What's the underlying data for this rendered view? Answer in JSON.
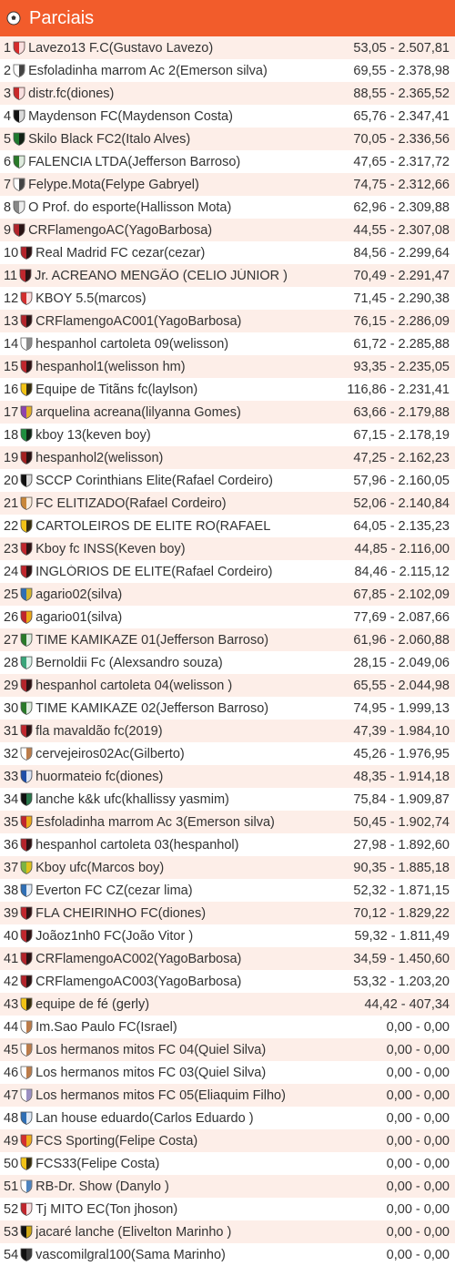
{
  "header": {
    "title": "Parciais",
    "icon": "soccer-ball-icon"
  },
  "colors": {
    "header_bg": "#f25c2b",
    "row_alt": "#fdeee8",
    "text": "#333333"
  },
  "rows": [
    {
      "pos": "1",
      "name": "Lavezo13 F.C(Gustavo Lavezo)",
      "score": "53,05 - 2.507,81",
      "c1": "#d62b2b",
      "c2": "#ffffff"
    },
    {
      "pos": "2",
      "name": "Esfoladinha marrom Ac 2(Emerson silva)",
      "score": "69,55 - 2.378,98",
      "c1": "#ffffff",
      "c2": "#222222"
    },
    {
      "pos": "3",
      "name": "distr.fc(diones)",
      "score": "88,55 - 2.365,52",
      "c1": "#c92a2a",
      "c2": "#ffffff"
    },
    {
      "pos": "4",
      "name": "Maydenson FC(Maydenson Costa)",
      "score": "65,76 - 2.347,41",
      "c1": "#111111",
      "c2": "#ffffff"
    },
    {
      "pos": "5",
      "name": "Skilo Black FC2(Italo Alves)",
      "score": "70,05 - 2.336,56",
      "c1": "#1f7a2e",
      "c2": "#111111"
    },
    {
      "pos": "6",
      "name": "FALENCIA LTDA(Jefferson Barroso)",
      "score": "47,65 - 2.317,72",
      "c1": "#2a7a2a",
      "c2": "#ffffff"
    },
    {
      "pos": "7",
      "name": "Felype.Mota(Felype Gabryel)",
      "score": "74,75 - 2.312,66",
      "c1": "#ffffff",
      "c2": "#222222"
    },
    {
      "pos": "8",
      "name": "O  Prof. do esporte(Hallisson Mota)",
      "score": "62,96 - 2.309,88",
      "c1": "#888888",
      "c2": "#ffffff"
    },
    {
      "pos": "9",
      "name": "CRFlamengoAC(YagoBarbosa)",
      "score": "44,55 - 2.307,08",
      "c1": "#b3242b",
      "c2": "#111111"
    },
    {
      "pos": "10",
      "name": "Real Madrid FC cezar(cezar)",
      "score": "84,56 - 2.299,64",
      "c1": "#b3242b",
      "c2": "#111111"
    },
    {
      "pos": "11",
      "name": "Jr. ACREANO MENGÃO (CELIO JÚNIOR )",
      "score": "70,49 - 2.291,47",
      "c1": "#c0262d",
      "c2": "#111111"
    },
    {
      "pos": "12",
      "name": "KBOY 5.5(marcos)",
      "score": "71,45 - 2.290,38",
      "c1": "#d32f2f",
      "c2": "#ffffff"
    },
    {
      "pos": "13",
      "name": "CRFlamengoAC001(YagoBarbosa)",
      "score": "76,15 - 2.286,09",
      "c1": "#b3242b",
      "c2": "#111111"
    },
    {
      "pos": "14",
      "name": "hespanhol cartoleta 09(welisson)",
      "score": "61,72 - 2.285,88",
      "c1": "#ffffff",
      "c2": "#777777"
    },
    {
      "pos": "15",
      "name": "hespanhol1(welisson hm)",
      "score": "93,35 - 2.235,05",
      "c1": "#c0262d",
      "c2": "#111111"
    },
    {
      "pos": "16",
      "name": "Equipe de Titãns fc(laylson)",
      "score": "116,86 - 2.231,41",
      "c1": "#f2c316",
      "c2": "#111111"
    },
    {
      "pos": "17",
      "name": "arquelina acreana(lilyanna Gomes)",
      "score": "63,66 - 2.179,88",
      "c1": "#8e44ad",
      "c2": "#f1c40f"
    },
    {
      "pos": "18",
      "name": "kboy 13(keven boy)",
      "score": "67,15 - 2.178,19",
      "c1": "#1e8e3e",
      "c2": "#111111"
    },
    {
      "pos": "19",
      "name": "hespanhol2(welisson)",
      "score": "47,25 - 2.162,23",
      "c1": "#a32020",
      "c2": "#111111"
    },
    {
      "pos": "20",
      "name": "SCCP Corinthians Elite(Rafael Cordeiro)",
      "score": "57,96 - 2.160,05",
      "c1": "#111111",
      "c2": "#ffffff"
    },
    {
      "pos": "21",
      "name": "FC ELITIZADO(Rafael Cordeiro)",
      "score": "52,06 - 2.140,84",
      "c1": "#c8873a",
      "c2": "#ffffff"
    },
    {
      "pos": "22",
      "name": "CARTOLEIROS DE ELITE RO(RAFAEL",
      "score": "64,05 - 2.135,23",
      "c1": "#f2c316",
      "c2": "#111111"
    },
    {
      "pos": "23",
      "name": "Kboy fc INSS(Keven boy)",
      "score": "44,85 - 2.116,00",
      "c1": "#c0262d",
      "c2": "#111111"
    },
    {
      "pos": "24",
      "name": "INGLÓRIOS DE ELITE(Rafael Cordeiro)",
      "score": "84,46 - 2.115,12",
      "c1": "#c0262d",
      "c2": "#111111"
    },
    {
      "pos": "25",
      "name": "agario02(silva)",
      "score": "67,85 - 2.102,09",
      "c1": "#2f6fb5",
      "c2": "#f2c316"
    },
    {
      "pos": "26",
      "name": "agario01(silva)",
      "score": "77,69 - 2.087,66",
      "c1": "#c0262d",
      "c2": "#f2c316"
    },
    {
      "pos": "27",
      "name": "TIME KAMIKAZE 01(Jefferson Barroso)",
      "score": "61,96 - 2.060,88",
      "c1": "#2a7a2a",
      "c2": "#ffffff"
    },
    {
      "pos": "28",
      "name": "Bernoldii Fc (Alexsandro souza)",
      "score": "28,15 - 2.049,06",
      "c1": "#3aa57a",
      "c2": "#ffffff"
    },
    {
      "pos": "29",
      "name": "hespanhol cartoleta 04(welisson )",
      "score": "65,55 - 2.044,98",
      "c1": "#b3242b",
      "c2": "#111111"
    },
    {
      "pos": "30",
      "name": "TIME KAMIKAZE 02(Jefferson Barroso)",
      "score": "74,95 - 1.999,13",
      "c1": "#2a7a2a",
      "c2": "#ffffff"
    },
    {
      "pos": "31",
      "name": "fla mavaldão fc(2019)",
      "score": "47,39 - 1.984,10",
      "c1": "#c0262d",
      "c2": "#111111"
    },
    {
      "pos": "32",
      "name": "cervejeiros02Ac(Gilberto)",
      "score": "45,26 - 1.976,95",
      "c1": "#ffffff",
      "c2": "#b0652a"
    },
    {
      "pos": "33",
      "name": "huormateio fc(diones)",
      "score": "48,35 - 1.914,18",
      "c1": "#1f4fa8",
      "c2": "#ffffff"
    },
    {
      "pos": "34",
      "name": "lanche k&k ufc(khallissy yasmim)",
      "score": "75,84 - 1.909,87",
      "c1": "#111111",
      "c2": "#2e8b57"
    },
    {
      "pos": "35",
      "name": "Esfoladinha marrom Ac 3(Emerson silva)",
      "score": "50,45 - 1.902,74",
      "c1": "#c0262d",
      "c2": "#f2c316"
    },
    {
      "pos": "36",
      "name": "hespanhol cartoleta 03(hespanhol)",
      "score": "27,98 - 1.892,60",
      "c1": "#b3242b",
      "c2": "#111111"
    },
    {
      "pos": "37",
      "name": "Kboy ufc(Marcos boy)",
      "score": "90,35 - 1.885,18",
      "c1": "#7cb342",
      "c2": "#f2c316"
    },
    {
      "pos": "38",
      "name": "Everton FC CZ(cezar lima)",
      "score": "52,32 - 1.871,15",
      "c1": "#2f6fb5",
      "c2": "#ffffff"
    },
    {
      "pos": "39",
      "name": "FLA CHEIRINHO FC(diones)",
      "score": "70,12 - 1.829,22",
      "c1": "#c0262d",
      "c2": "#111111"
    },
    {
      "pos": "40",
      "name": "Joãoz1nh0 FC(João Vitor )",
      "score": "59,32 - 1.811,49",
      "c1": "#c0262d",
      "c2": "#111111"
    },
    {
      "pos": "41",
      "name": "CRFlamengoAC002(YagoBarbosa)",
      "score": "34,59 - 1.450,60",
      "c1": "#b3242b",
      "c2": "#111111"
    },
    {
      "pos": "42",
      "name": "CRFlamengoAC003(YagoBarbosa)",
      "score": "53,32 - 1.203,20",
      "c1": "#b3242b",
      "c2": "#111111"
    },
    {
      "pos": "43",
      "name": "equipe de fé (gerly)",
      "score": "44,42 - 407,34",
      "c1": "#f2c316",
      "c2": "#111111"
    },
    {
      "pos": "44",
      "name": "Im.Sao Paulo FC(Israel)",
      "score": "0,00 - 0,00",
      "c1": "#ffffff",
      "c2": "#b0652a"
    },
    {
      "pos": "45",
      "name": "Los hermanos mitos FC 04(Quiel Silva)",
      "score": "0,00 - 0,00",
      "c1": "#ffffff",
      "c2": "#b0652a"
    },
    {
      "pos": "46",
      "name": "Los hermanos mitos FC 03(Quiel Silva)",
      "score": "0,00 - 0,00",
      "c1": "#ffffff",
      "c2": "#b0652a"
    },
    {
      "pos": "47",
      "name": "Los hermanos mitos FC 05(Eliaquim Filho)",
      "score": "0,00 - 0,00",
      "c1": "#ffffff",
      "c2": "#8a7bb8"
    },
    {
      "pos": "48",
      "name": "Lan house eduardo(Carlos Eduardo )",
      "score": "0,00 - 0,00",
      "c1": "#2f6fb5",
      "c2": "#ffffff"
    },
    {
      "pos": "49",
      "name": "FCS Sporting(Felipe Costa)",
      "score": "0,00 - 0,00",
      "c1": "#d32f2f",
      "c2": "#f2c316"
    },
    {
      "pos": "50",
      "name": "FCS33(Felipe Costa)",
      "score": "0,00 - 0,00",
      "c1": "#f2c316",
      "c2": "#111111"
    },
    {
      "pos": "51",
      "name": "RB-Dr. Show (Danylo )",
      "score": "0,00 - 0,00",
      "c1": "#ffffff",
      "c2": "#2f6fb5"
    },
    {
      "pos": "52",
      "name": "Tj MITO EC(Ton jhoson)",
      "score": "0,00 - 0,00",
      "c1": "#c0262d",
      "c2": "#ffffff"
    },
    {
      "pos": "53",
      "name": "jacaré lanche (Elivelton Marinho )",
      "score": "0,00 - 0,00",
      "c1": "#111111",
      "c2": "#f2c316"
    },
    {
      "pos": "54",
      "name": "vascomilgral100(Sama Marinho)",
      "score": "0,00 - 0,00",
      "c1": "#111111",
      "c2": "#444444"
    }
  ]
}
